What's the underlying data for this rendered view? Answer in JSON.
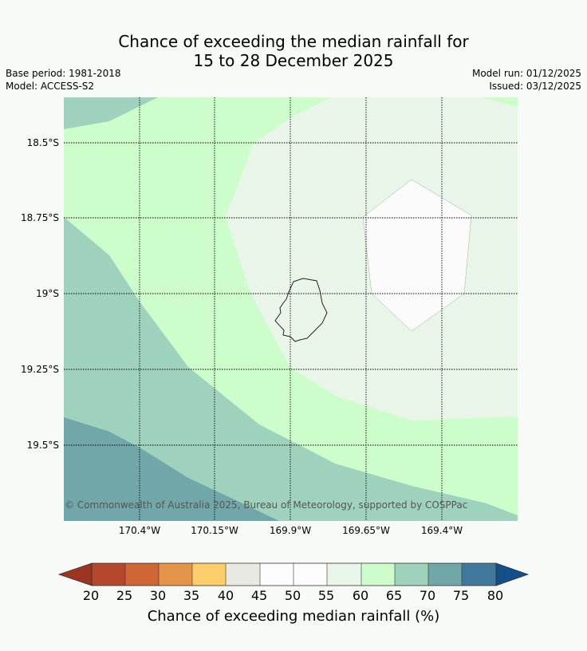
{
  "title": {
    "line1": "Chance of exceeding the median rainfall for",
    "line2": "15 to 28 December 2025"
  },
  "meta": {
    "base_period": "Base period: 1981-2018",
    "model": "Model: ACCESS-S2",
    "model_run": "Model run: 01/12/2025",
    "issued": "Issued: 03/12/2025"
  },
  "map": {
    "lat_labels": [
      "18.5°S",
      "18.75°S",
      "19°S",
      "19.25°S",
      "19.5°S"
    ],
    "lon_labels": [
      "170.4°W",
      "170.15°W",
      "169.9°W",
      "169.65°W",
      "169.4°W"
    ],
    "copyright": "© Commonwealth of Australia 2025, Bureau of Meteorology, supported by COSPPac"
  },
  "colorbar": {
    "title": "Chance of exceeding median rainfall (%)",
    "ticks": [
      "20",
      "25",
      "30",
      "35",
      "40",
      "45",
      "50",
      "55",
      "60",
      "65",
      "70",
      "75",
      "80"
    ],
    "colors": {
      "below_20": "#9b3520",
      "20_25": "#b5482a",
      "25_30": "#cf6635",
      "30_35": "#e39549",
      "35_40": "#fece6a",
      "40_45": "#e9e9e4",
      "45_50": "#fdfdfd",
      "50_55": "#fdfdfd",
      "55_60": "#e9f5e9",
      "60_65": "#ccfdcb",
      "65_70": "#9ed2bc",
      "70_75": "#71a7a9",
      "75_80": "#41799d",
      "above_80": "#144f8b"
    }
  }
}
